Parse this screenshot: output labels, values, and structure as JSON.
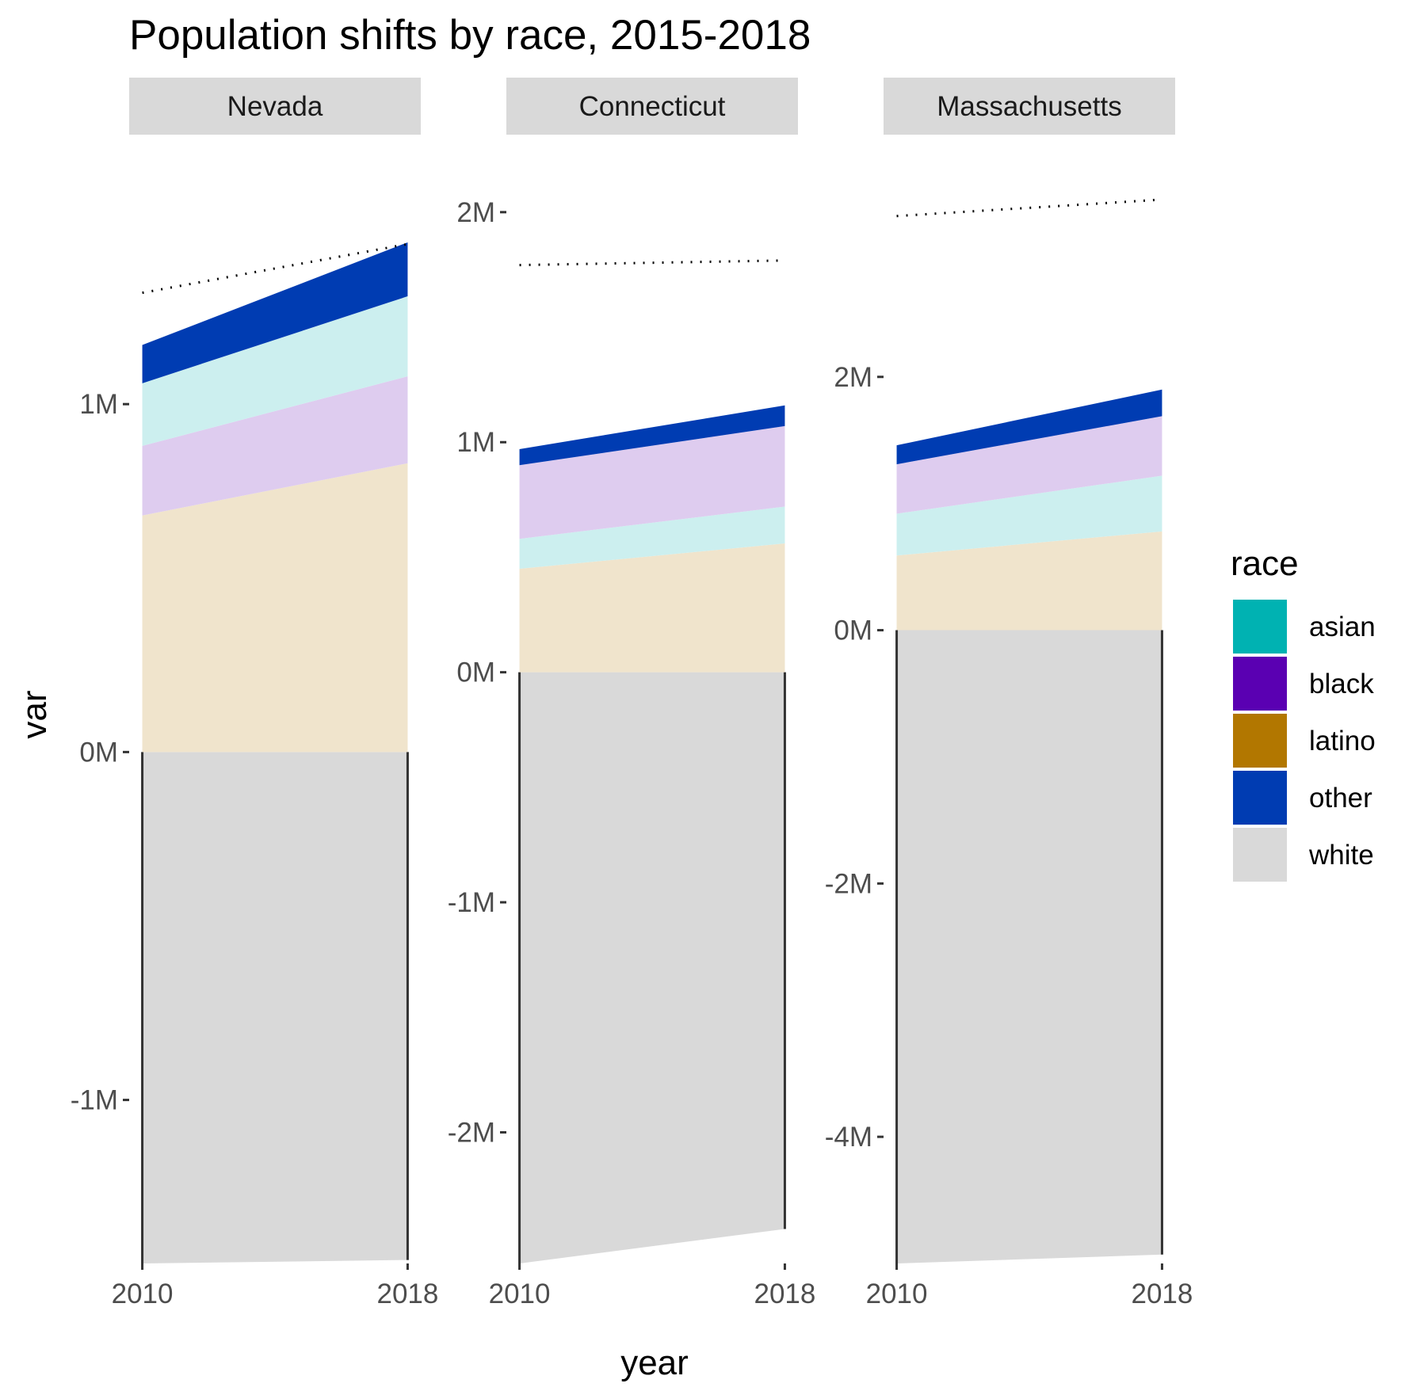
{
  "chart_data": {
    "type": "area",
    "title": "Population shifts by race, 2015-2018",
    "xlabel": "year",
    "ylabel": "var",
    "x": [
      2010,
      2018
    ],
    "x_tick_labels": [
      "2010",
      "2018"
    ],
    "legend": {
      "title": "race",
      "placement": "right",
      "entries": [
        {
          "label": "asian",
          "color": "#00B2B2"
        },
        {
          "label": "black",
          "color": "#5A00B2"
        },
        {
          "label": "latino",
          "color": "#B27700"
        },
        {
          "label": "other",
          "color": "#003CB2"
        },
        {
          "label": "white",
          "color": "#D9D9D9"
        }
      ]
    },
    "fill_colors": {
      "asian": "#CCEFEF",
      "black": "#DECCEF",
      "latino": "#F0E4CC",
      "other": "#003CB2",
      "white": "#D9D9D9"
    },
    "grid": false,
    "facets": [
      {
        "name": "Nevada",
        "ylim": [
          -1.47,
          1.77
        ],
        "y_ticks": [
          {
            "value": 1,
            "label": "1M"
          },
          {
            "value": 0,
            "label": "0M"
          },
          {
            "value": -1,
            "label": "-1M"
          }
        ],
        "white": [
          -1.47,
          -1.46
        ],
        "stack_order": [
          "latino",
          "black",
          "asian",
          "other"
        ],
        "series": [
          {
            "name": "latino",
            "values": [
              0.68,
              0.83
            ]
          },
          {
            "name": "black",
            "values": [
              0.2,
              0.25
            ]
          },
          {
            "name": "asian",
            "values": [
              0.18,
              0.23
            ]
          },
          {
            "name": "other",
            "values": [
              0.11,
              0.155
            ]
          }
        ],
        "total_line": [
          1.32,
          1.46
        ]
      },
      {
        "name": "Connecticut",
        "ylim": [
          -2.57,
          2.33
        ],
        "y_ticks": [
          {
            "value": 2,
            "label": "2M"
          },
          {
            "value": 1,
            "label": "1M"
          },
          {
            "value": 0,
            "label": "0M"
          },
          {
            "value": -1,
            "label": "-1M"
          },
          {
            "value": -2,
            "label": "-2M"
          }
        ],
        "white": [
          -2.57,
          -2.42
        ],
        "stack_order": [
          "latino",
          "asian",
          "black",
          "other"
        ],
        "series": [
          {
            "name": "latino",
            "values": [
              0.45,
              0.56
            ]
          },
          {
            "name": "asian",
            "values": [
              0.13,
              0.16
            ]
          },
          {
            "name": "black",
            "values": [
              0.32,
              0.35
            ]
          },
          {
            "name": "other",
            "values": [
              0.07,
              0.09
            ]
          }
        ],
        "total_line": [
          1.77,
          1.79
        ]
      },
      {
        "name": "Massachusetts",
        "ylim": [
          -5.0,
          3.9
        ],
        "y_ticks": [
          {
            "value": 2,
            "label": "2M"
          },
          {
            "value": 0,
            "label": "0M"
          },
          {
            "value": -2,
            "label": "-2M"
          },
          {
            "value": -4,
            "label": "-4M"
          }
        ],
        "white": [
          -5.0,
          -4.93
        ],
        "stack_order": [
          "latino",
          "asian",
          "black",
          "other"
        ],
        "series": [
          {
            "name": "latino",
            "values": [
              0.59,
              0.78
            ]
          },
          {
            "name": "asian",
            "values": [
              0.33,
              0.44
            ]
          },
          {
            "name": "black",
            "values": [
              0.39,
              0.47
            ]
          },
          {
            "name": "other",
            "values": [
              0.15,
              0.21
            ]
          }
        ],
        "total_line": [
          3.27,
          3.4
        ]
      }
    ]
  }
}
